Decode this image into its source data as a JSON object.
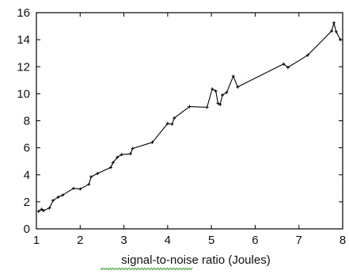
{
  "chart_data": {
    "type": "line",
    "title": "",
    "xlabel": "signal-to-noise ratio (Joules)",
    "ylabel": "",
    "xlim": [
      1,
      8
    ],
    "ylim": [
      0,
      16
    ],
    "x_ticks": [
      1,
      2,
      3,
      4,
      5,
      6,
      7,
      8
    ],
    "y_ticks": [
      0,
      2,
      4,
      6,
      8,
      10,
      12,
      14,
      16
    ],
    "grid": false,
    "legend": "none",
    "colors": {
      "line": "#000000",
      "axes": "#000000",
      "spellcheck_underline": "#3aa63a"
    },
    "series": [
      {
        "points": [
          [
            1.05,
            1.3
          ],
          [
            1.12,
            1.45
          ],
          [
            1.16,
            1.35
          ],
          [
            1.3,
            1.55
          ],
          [
            1.38,
            2.1
          ],
          [
            1.5,
            2.35
          ],
          [
            1.6,
            2.5
          ],
          [
            1.85,
            3.0
          ],
          [
            2.0,
            2.95
          ],
          [
            2.2,
            3.3
          ],
          [
            2.25,
            3.85
          ],
          [
            2.4,
            4.1
          ],
          [
            2.7,
            4.55
          ],
          [
            2.75,
            4.9
          ],
          [
            2.85,
            5.3
          ],
          [
            2.95,
            5.5
          ],
          [
            3.15,
            5.55
          ],
          [
            3.2,
            5.95
          ],
          [
            3.65,
            6.4
          ],
          [
            4.0,
            7.8
          ],
          [
            4.1,
            7.75
          ],
          [
            4.15,
            8.2
          ],
          [
            4.5,
            9.05
          ],
          [
            4.9,
            9.0
          ],
          [
            5.02,
            10.35
          ],
          [
            5.1,
            10.2
          ],
          [
            5.15,
            9.3
          ],
          [
            5.2,
            9.2
          ],
          [
            5.25,
            9.9
          ],
          [
            5.35,
            10.1
          ],
          [
            5.5,
            11.3
          ],
          [
            5.6,
            10.5
          ],
          [
            6.65,
            12.2
          ],
          [
            6.75,
            11.95
          ],
          [
            7.2,
            12.85
          ],
          [
            7.75,
            14.65
          ],
          [
            7.8,
            15.25
          ],
          [
            7.85,
            14.6
          ],
          [
            7.95,
            14.0
          ]
        ]
      }
    ]
  }
}
